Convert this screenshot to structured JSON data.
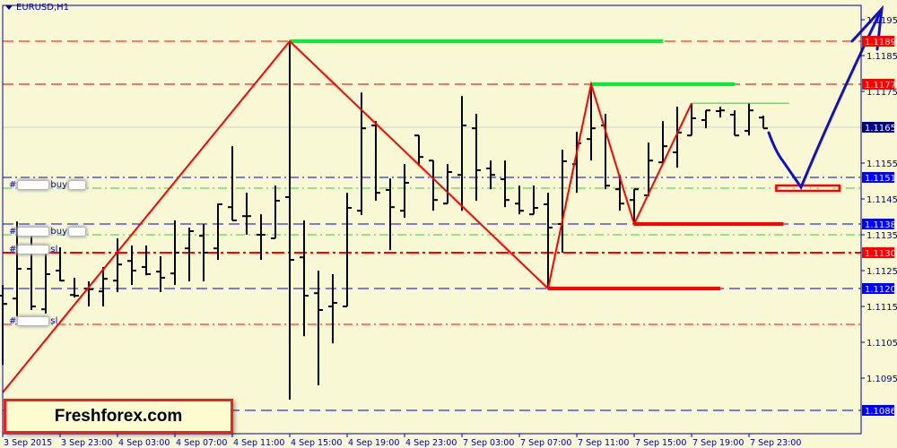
{
  "window": {
    "symbol": "EURUSD,H1"
  },
  "brand": {
    "text": "Freshforex.com"
  },
  "price_axis": {
    "ticks": [
      "1.1195",
      "1.1185",
      "1.1175",
      "1.1155",
      "1.1145",
      "1.1135",
      "1.1125",
      "1.1115",
      "1.1105",
      "1.1095"
    ],
    "badges": [
      {
        "label": "1.1189",
        "color": "#ff0000"
      },
      {
        "label": "1.1177",
        "color": "#ff0000"
      },
      {
        "label": "1.1165",
        "color": "#000080"
      },
      {
        "label": "1.1151",
        "color": "#0000ff"
      },
      {
        "label": "1.1138",
        "color": "#0000ff"
      },
      {
        "label": "1.1130",
        "color": "#ff0000"
      },
      {
        "label": "1.1120",
        "color": "#0000ff"
      },
      {
        "label": "1.1086",
        "color": "#0000ff"
      }
    ]
  },
  "time_axis": [
    "3 Sep 2015",
    "3 Sep 23:00",
    "4 Sep 03:00",
    "4 Sep 07:00",
    "4 Sep 11:00",
    "4 Sep 15:00",
    "4 Sep 19:00",
    "4 Sep 23:00",
    "7 Sep 03:00",
    "7 Sep 07:00",
    "7 Sep 11:00",
    "7 Sep 15:00",
    "7 Sep 19:00",
    "7 Sep 23:00"
  ],
  "trades": [
    {
      "prefix": "#",
      "type": "buy",
      "price": 1.1149
    },
    {
      "prefix": "#",
      "type": "buy",
      "price": 1.1136
    },
    {
      "prefix": "#",
      "type": "sl",
      "price": 1.1131
    },
    {
      "prefix": "#",
      "type": "sl",
      "price": 1.1111
    }
  ],
  "levels": [
    {
      "price": 1.1189,
      "color": "#ff0000",
      "style": "dashed"
    },
    {
      "price": 1.1177,
      "color": "#cc0000",
      "style": "dashed"
    },
    {
      "price": 1.1165,
      "color": "#d0d0d0",
      "style": "solid"
    },
    {
      "price": 1.1151,
      "color": "#0000cc",
      "style": "dashdot"
    },
    {
      "price": 1.1148,
      "color": "#33cc33",
      "style": "dashdot"
    },
    {
      "price": 1.1138,
      "color": "#0000cc",
      "style": "dashed"
    },
    {
      "price": 1.1135,
      "color": "#33cc33",
      "style": "dashdot"
    },
    {
      "price": 1.113,
      "color": "#ff0000",
      "style": "dashed-thick"
    },
    {
      "price": 1.112,
      "color": "#0000cc",
      "style": "dashed"
    },
    {
      "price": 1.111,
      "color": "#ff0000",
      "style": "dashdot"
    },
    {
      "price": 1.1086,
      "color": "#0000cc",
      "style": "dashed"
    }
  ],
  "zigzag": {
    "color": "#ff0000",
    "points": [
      [
        0,
        1.1091
      ],
      [
        20,
        1.1189
      ],
      [
        38,
        1.112
      ],
      [
        41,
        1.1177
      ],
      [
        44,
        1.1138
      ],
      [
        48,
        1.11717
      ]
    ]
  },
  "marks": [
    {
      "from": 20,
      "to": 46,
      "price": 1.1189,
      "color": "#00ee33",
      "weight": "thick"
    },
    {
      "from": 41,
      "to": 51,
      "price": 1.1177,
      "color": "#00ee33",
      "weight": "thick"
    },
    {
      "from": 48,
      "to": 54.8,
      "price": 1.11717,
      "color": "#33dd33",
      "weight": "thin"
    },
    {
      "from": 38,
      "to": 50,
      "price": 1.112,
      "color": "#ff0000",
      "weight": "thick"
    },
    {
      "from": 44,
      "to": 54.4,
      "price": 1.1138,
      "color": "#ff0000",
      "weight": "thick"
    },
    {
      "from": 53.9,
      "to": 58.3,
      "price": 1.1148,
      "color": "#ff0000",
      "weight": "box"
    }
  ],
  "forecast": {
    "color": "#1010cc"
  },
  "chart_data": {
    "type": "ohlc",
    "symbol": "EURUSD",
    "timeframe": "H1",
    "ylim": [
      1.10855,
      1.12
    ],
    "bars": [
      [
        1.1118,
        1.1121,
        1.10987,
        1.11157
      ],
      [
        1.11172,
        1.11387,
        1.11122,
        1.11255
      ],
      [
        1.11255,
        1.1135,
        1.1114,
        1.1115
      ],
      [
        1.11142,
        1.1131,
        1.1113,
        1.1124
      ],
      [
        1.1125,
        1.11315,
        1.1122,
        1.11222
      ],
      [
        1.11182,
        1.1123,
        1.11175,
        1.1118
      ],
      [
        1.112,
        1.1122,
        1.1115,
        1.11198
      ],
      [
        1.11192,
        1.1126,
        1.1115,
        1.11227
      ],
      [
        1.11222,
        1.1134,
        1.1119,
        1.11267
      ],
      [
        1.11277,
        1.1132,
        1.1121,
        1.1125
      ],
      [
        1.1126,
        1.1132,
        1.11237,
        1.1124
      ],
      [
        1.11247,
        1.1129,
        1.1119,
        1.1123
      ],
      [
        1.11242,
        1.1139,
        1.1121,
        1.113
      ],
      [
        1.11312,
        1.1137,
        1.1122,
        1.1136
      ],
      [
        1.11347,
        1.1138,
        1.1122,
        1.113
      ],
      [
        1.11312,
        1.11437,
        1.1128,
        1.11435
      ],
      [
        1.11427,
        1.11597,
        1.1139,
        1.1139
      ],
      [
        1.11402,
        1.11467,
        1.1135,
        1.11402
      ],
      [
        1.1135,
        1.11407,
        1.1128,
        1.1135
      ],
      [
        1.1134,
        1.11487,
        1.1134,
        1.11445
      ],
      [
        1.11455,
        1.1189,
        1.1089,
        1.1128
      ],
      [
        1.11287,
        1.1139,
        1.11067,
        1.1118
      ],
      [
        1.11187,
        1.1125,
        1.1093,
        1.1114
      ],
      [
        1.1115,
        1.1124,
        1.11047,
        1.1116
      ],
      [
        1.1115,
        1.11467,
        1.1115,
        1.11425
      ],
      [
        1.11417,
        1.11747,
        1.11405,
        1.11647
      ],
      [
        1.11655,
        1.11667,
        1.11445,
        1.11467
      ],
      [
        1.11475,
        1.11507,
        1.11307,
        1.11427
      ],
      [
        1.11417,
        1.11547,
        1.11397,
        1.11495
      ],
      [
        1.11627,
        1.11627,
        1.11542,
        1.11567
      ],
      [
        1.11557,
        1.11557,
        1.11417,
        1.11447
      ],
      [
        1.11437,
        1.11547,
        1.11437,
        1.11525
      ],
      [
        1.11517,
        1.11737,
        1.11417,
        1.11655
      ],
      [
        1.11647,
        1.11687,
        1.11445,
        1.1153
      ],
      [
        1.11535,
        1.11557,
        1.11477,
        1.11517
      ],
      [
        1.11505,
        1.11557,
        1.11427,
        1.11447
      ],
      [
        1.11437,
        1.11487,
        1.11407,
        1.11417
      ],
      [
        1.11407,
        1.11487,
        1.11407,
        1.11425
      ],
      [
        1.11435,
        1.11467,
        1.112,
        1.1137
      ],
      [
        1.1138,
        1.11587,
        1.113,
        1.11555
      ],
      [
        1.11547,
        1.11637,
        1.11467,
        1.11605
      ],
      [
        1.11617,
        1.1177,
        1.11557,
        1.11647
      ],
      [
        1.11655,
        1.11687,
        1.11477,
        1.11487
      ],
      [
        1.11477,
        1.11517,
        1.11417,
        1.11437
      ],
      [
        1.11447,
        1.11477,
        1.1138,
        1.11477
      ],
      [
        1.1146,
        1.11607,
        1.11457,
        1.11557
      ],
      [
        1.11552,
        1.11667,
        1.11552,
        1.11597
      ],
      [
        1.1158,
        1.11707,
        1.11537,
        1.11635
      ],
      [
        1.11627,
        1.11717,
        1.11627,
        1.11675
      ],
      [
        1.1167,
        1.11697,
        1.11647,
        1.11697
      ],
      [
        1.11695,
        1.11707,
        1.11677,
        1.11697
      ],
      [
        1.11685,
        1.11697,
        1.11627,
        1.11627
      ],
      [
        1.1164,
        1.11717,
        1.11627,
        1.11697
      ],
      [
        1.11677,
        1.11682,
        1.11647,
        1.11647
      ]
    ]
  }
}
